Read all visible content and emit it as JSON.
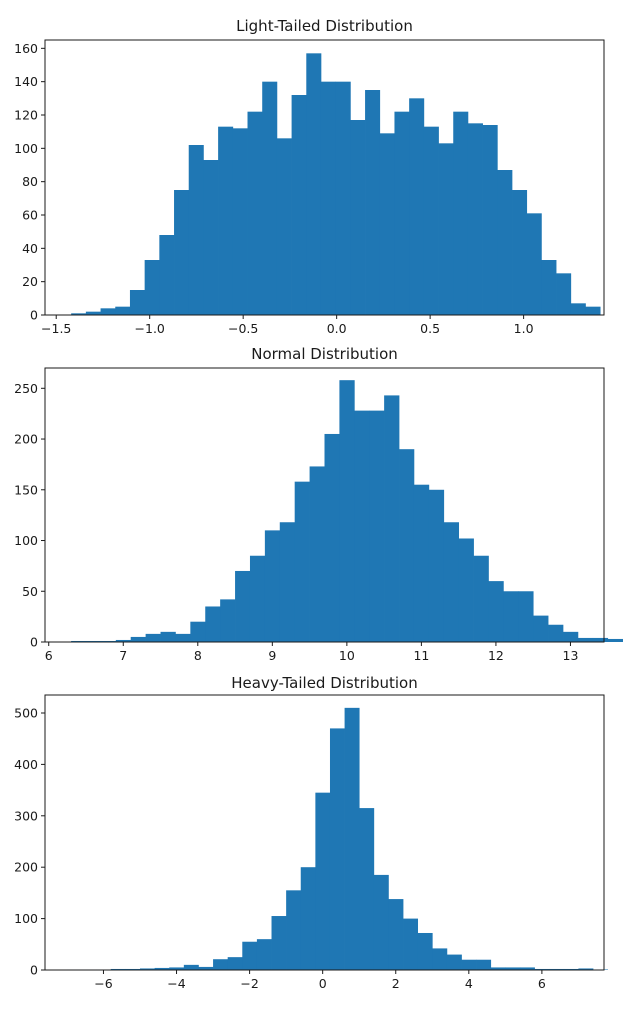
{
  "chart_data": [
    {
      "type": "bar",
      "subtype": "histogram",
      "title": "Light-Tailed Distribution",
      "xlabel": "",
      "ylabel": "",
      "color": "#1f77b4",
      "grid": false,
      "xlim": [
        -1.56,
        1.43
      ],
      "ylim": [
        0,
        165
      ],
      "xticks": [
        -1.5,
        -1.0,
        -0.5,
        0.0,
        0.5,
        1.0
      ],
      "xtick_labels": [
        "−1.5",
        "−1.0",
        "−0.5",
        "0.0",
        "0.5",
        "1.0"
      ],
      "yticks": [
        0,
        20,
        40,
        60,
        80,
        100,
        120,
        140,
        160
      ],
      "ytick_labels": [
        "0",
        "20",
        "40",
        "60",
        "80",
        "100",
        "120",
        "140",
        "160"
      ],
      "bins": {
        "start": -1.42,
        "width": 0.0786,
        "counts": [
          1,
          2,
          4,
          5,
          15,
          33,
          48,
          75,
          102,
          93,
          113,
          112,
          122,
          140,
          106,
          132,
          157,
          140,
          140,
          117,
          135,
          109,
          122,
          130,
          113,
          103,
          122,
          115,
          114,
          87,
          75,
          61,
          33,
          25,
          7,
          5
        ]
      }
    },
    {
      "type": "bar",
      "subtype": "histogram",
      "title": "Normal Distribution",
      "xlabel": "",
      "ylabel": "",
      "color": "#1f77b4",
      "grid": false,
      "xlim": [
        5.95,
        13.45
      ],
      "ylim": [
        0,
        270
      ],
      "xticks": [
        6,
        7,
        8,
        9,
        10,
        11,
        12,
        13
      ],
      "xtick_labels": [
        "6",
        "7",
        "8",
        "9",
        "10",
        "11",
        "12",
        "13"
      ],
      "yticks": [
        0,
        50,
        100,
        150,
        200,
        250
      ],
      "ytick_labels": [
        "0",
        "50",
        "100",
        "150",
        "200",
        "250"
      ],
      "bins": {
        "start": 6.3,
        "width": 0.2,
        "counts": [
          1,
          1,
          1,
          2,
          5,
          8,
          10,
          8,
          20,
          35,
          42,
          70,
          85,
          110,
          118,
          158,
          173,
          205,
          258,
          228,
          228,
          243,
          190,
          155,
          150,
          118,
          102,
          85,
          60,
          50,
          50,
          26,
          17,
          10,
          4,
          4,
          3
        ]
      }
    },
    {
      "type": "bar",
      "subtype": "histogram",
      "title": "Heavy-Tailed Distribution",
      "xlabel": "",
      "ylabel": "",
      "color": "#1f77b4",
      "grid": false,
      "xlim": [
        -7.6,
        7.7
      ],
      "ylim": [
        0,
        535
      ],
      "xticks": [
        -6,
        -4,
        -2,
        0,
        2,
        4,
        6
      ],
      "xtick_labels": [
        "−6",
        "−4",
        "−2",
        "0",
        "2",
        "4",
        "6"
      ],
      "yticks": [
        0,
        100,
        200,
        300,
        400,
        500
      ],
      "ytick_labels": [
        "0",
        "100",
        "200",
        "300",
        "400",
        "500"
      ],
      "bins": {
        "start": -7.0,
        "width": 0.4,
        "counts": [
          1,
          1,
          1,
          2,
          2,
          3,
          4,
          5,
          10,
          6,
          21,
          25,
          55,
          60,
          105,
          155,
          200,
          345,
          470,
          510,
          315,
          185,
          138,
          100,
          72,
          42,
          30,
          20,
          20,
          5,
          5,
          5,
          2,
          2,
          2,
          3,
          1
        ]
      }
    }
  ]
}
